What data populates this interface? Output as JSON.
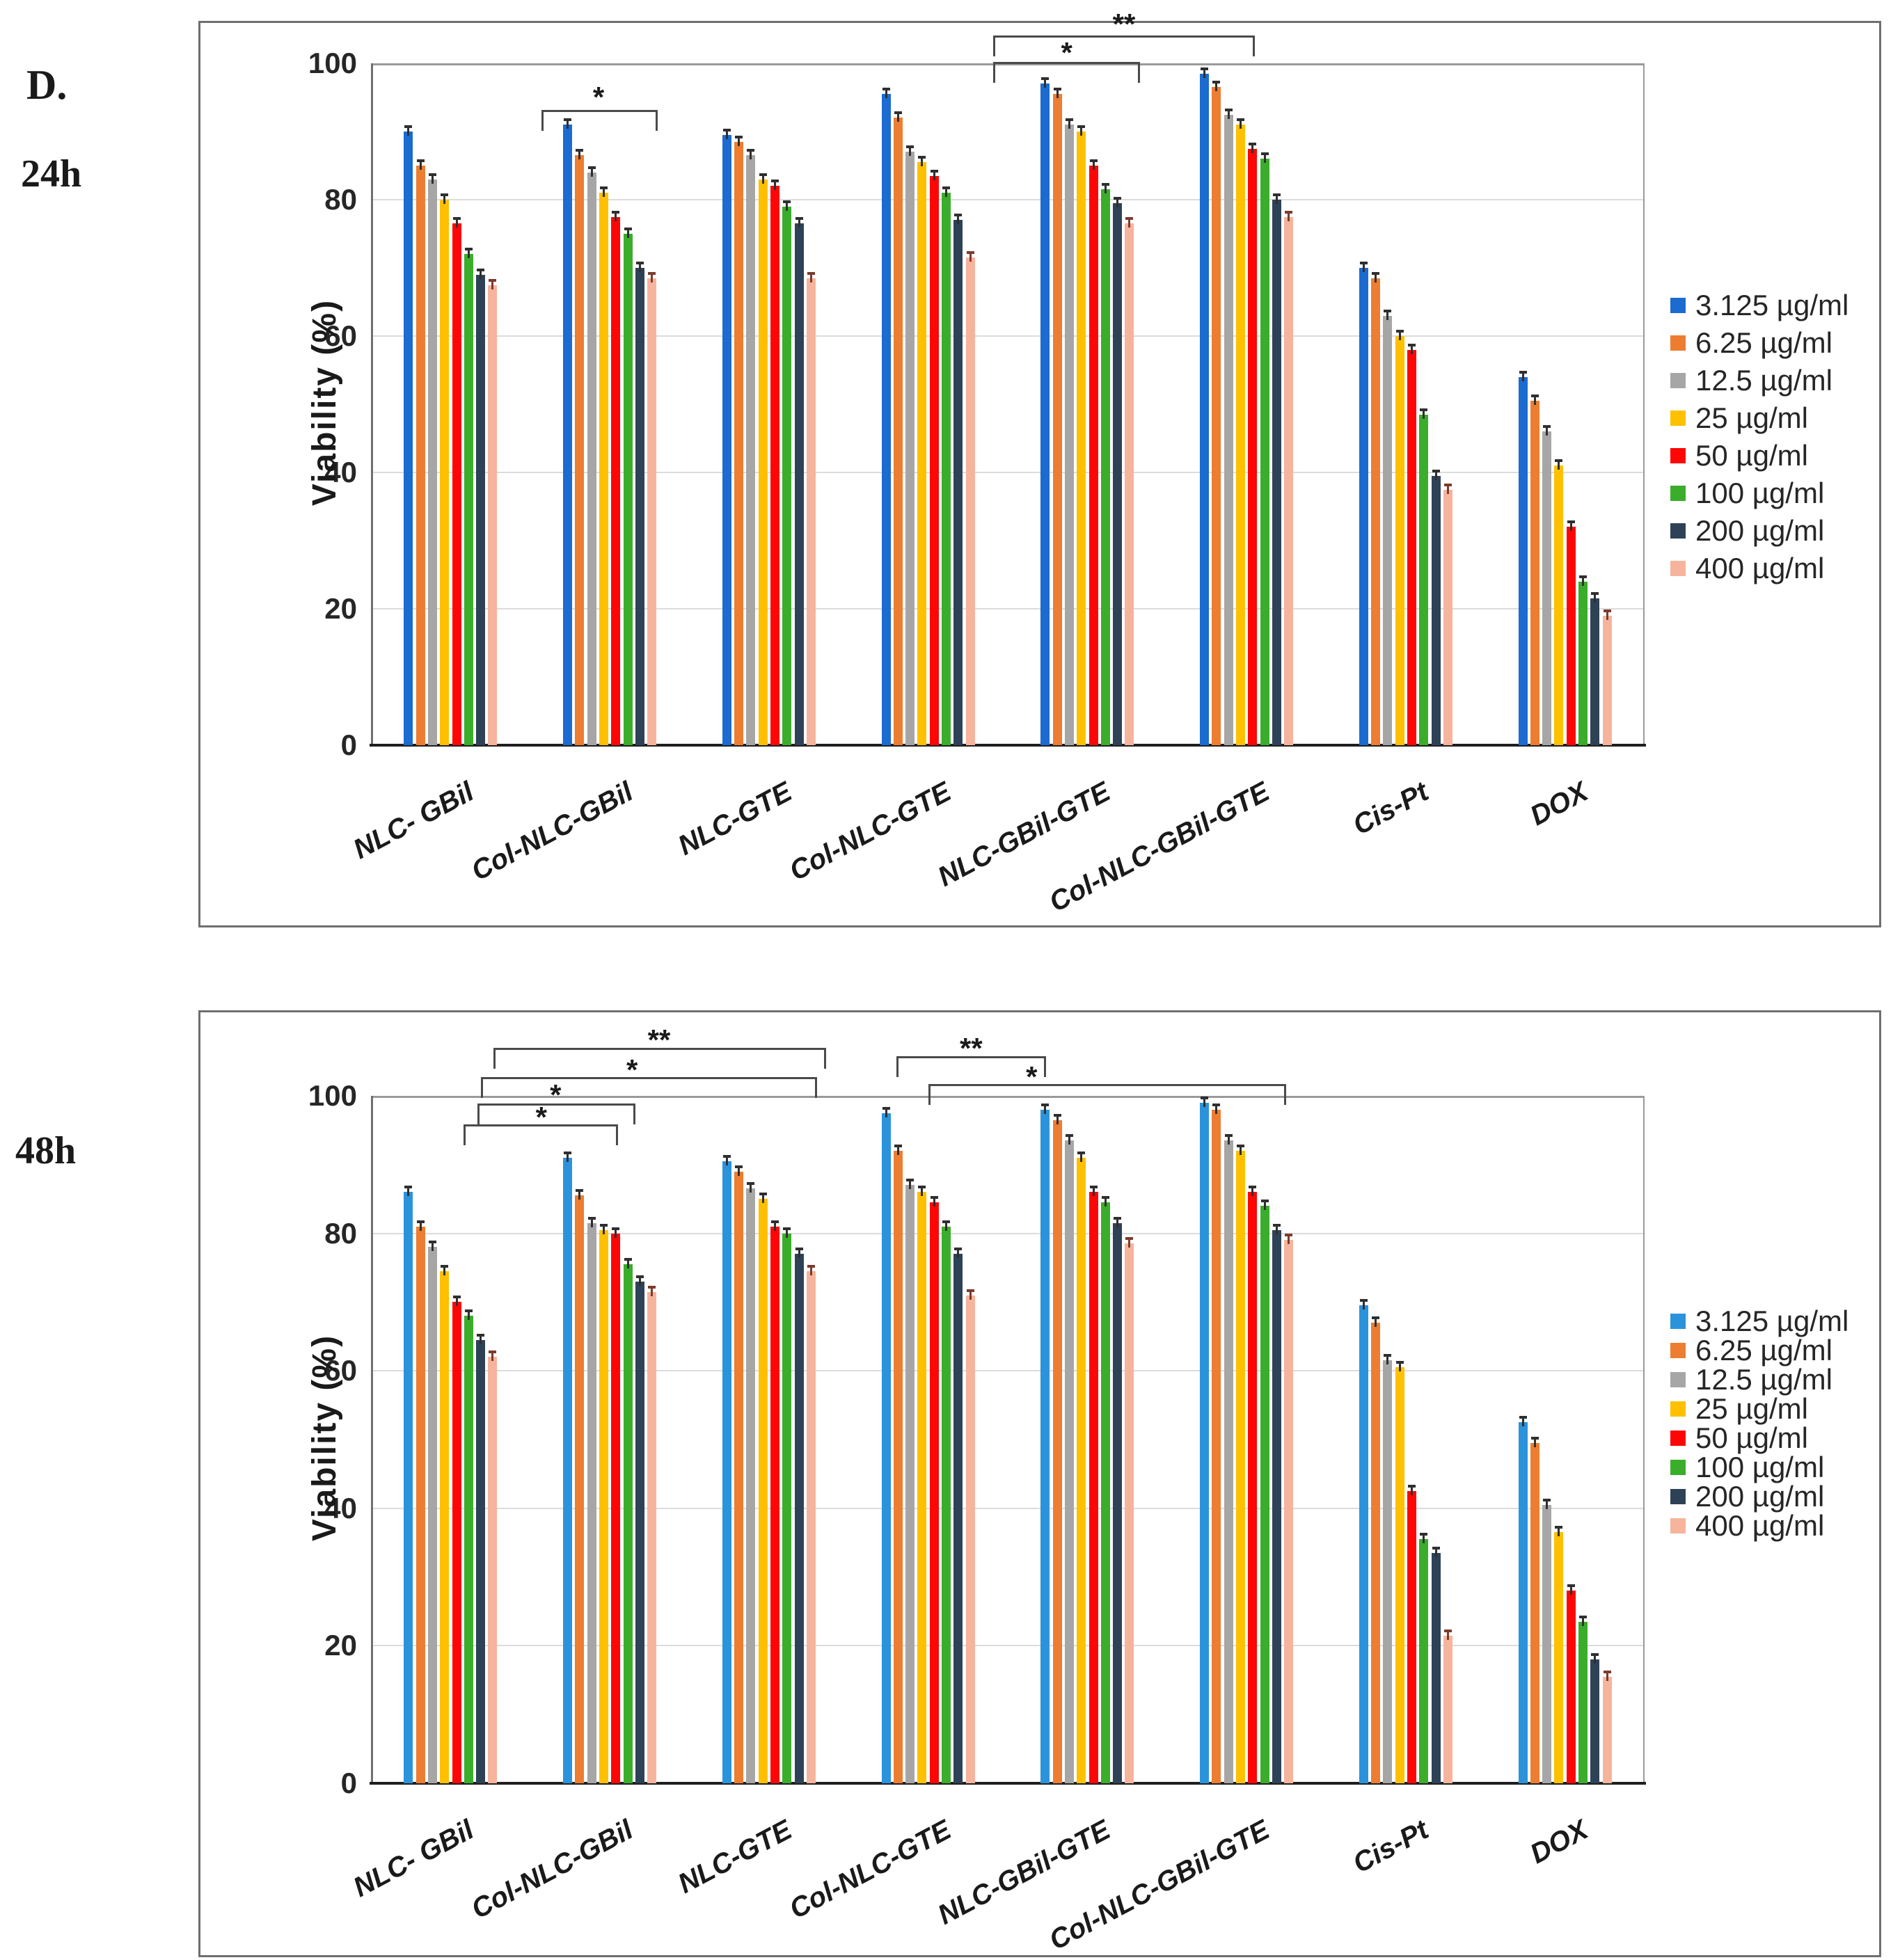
{
  "figure": {
    "panel_label": "D.",
    "background": "#ffffff",
    "border_color": "#6f6f6f"
  },
  "chart_data": [
    {
      "id": "viability-24h",
      "type": "bar",
      "row_label": "24h",
      "ylabel": "Viability  (%)",
      "ylim": [
        0,
        100
      ],
      "yticks": [
        0,
        20,
        40,
        60,
        80,
        100
      ],
      "grid": true,
      "legend_position": "right",
      "error_bar_percent": 0.8,
      "categories": [
        "NLC- GBil",
        "Col-NLC-GBil",
        "NLC-GTE",
        "Col-NLC-GTE",
        "NLC-GBil-GTE",
        "Col-NLC-GBil-GTE",
        "Cis-Pt",
        "DOX"
      ],
      "series": [
        {
          "name": "3.125 µg/ml",
          "color": "#1b6bd0",
          "cap": "#2f2f2f",
          "values": [
            90,
            91,
            89.5,
            95.5,
            97,
            98.5,
            70,
            54
          ]
        },
        {
          "name": "6.25 µg/ml",
          "color": "#ed7d31",
          "cap": "#2f2f2f",
          "values": [
            85,
            86.5,
            88.5,
            92,
            95.5,
            96.5,
            68.5,
            50.5
          ]
        },
        {
          "name": "12.5 µg/ml",
          "color": "#a6a6a6",
          "cap": "#2f2f2f",
          "values": [
            83,
            84,
            86.5,
            87,
            91,
            92.5,
            63,
            46
          ]
        },
        {
          "name": "25 µg/ml",
          "color": "#ffc000",
          "cap": "#2f2f2f",
          "values": [
            80,
            81,
            83,
            85.5,
            90,
            91,
            60,
            41
          ]
        },
        {
          "name": "50 µg/ml",
          "color": "#fe0606",
          "cap": "#2f2f2f",
          "values": [
            76.5,
            77.5,
            82,
            83.5,
            85,
            87.5,
            58,
            32
          ]
        },
        {
          "name": "100 µg/ml",
          "color": "#3aad2b",
          "cap": "#2f2f2f",
          "values": [
            72,
            75,
            79,
            81,
            81.5,
            86,
            48.5,
            24
          ]
        },
        {
          "name": "200 µg/ml",
          "color": "#2e4257",
          "cap": "#2f2f2f",
          "values": [
            69,
            70,
            76.5,
            77,
            79.5,
            80,
            39.5,
            21.5
          ]
        },
        {
          "name": "400 µg/ml",
          "color": "#f6b49d",
          "cap": "#7c3b2d",
          "values": [
            67.5,
            68.5,
            68.5,
            71.5,
            76.5,
            77.5,
            37.5,
            19
          ]
        }
      ],
      "significance": [
        {
          "from": 1.07,
          "to": 1.8,
          "y": 93.2,
          "label": "*",
          "label_at": 1.43,
          "label_y": 97.5
        },
        {
          "from": 3.91,
          "to": 5.55,
          "y": 104.1,
          "label": "**",
          "label_at": 4.73,
          "label_y": 108.2
        },
        {
          "from": 3.91,
          "to": 4.83,
          "y": 100.2,
          "label": "*",
          "label_at": 4.37,
          "label_y": 104.0
        }
      ]
    },
    {
      "id": "viability-48h",
      "type": "bar",
      "row_label": "48h",
      "ylabel": "Viability  (%)",
      "ylim": [
        0,
        100
      ],
      "yticks": [
        0,
        20,
        40,
        60,
        80,
        100
      ],
      "grid": true,
      "legend_position": "right",
      "error_bar_percent": 0.8,
      "categories": [
        "NLC- GBil",
        "Col-NLC-GBil",
        "NLC-GTE",
        "Col-NLC-GTE",
        "NLC-GBil-GTE",
        "Col-NLC-GBil-GTE",
        "Cis-Pt",
        "DOX"
      ],
      "series": [
        {
          "name": "3.125 µg/ml",
          "color": "#2b93db",
          "cap": "#2f2f2f",
          "values": [
            86,
            91,
            90.5,
            97.5,
            98,
            99,
            69.5,
            52.5
          ]
        },
        {
          "name": "6.25 µg/ml",
          "color": "#ed7d31",
          "cap": "#2f2f2f",
          "values": [
            81,
            85.5,
            89,
            92,
            96.5,
            98,
            67,
            49.5
          ]
        },
        {
          "name": "12.5 µg/ml",
          "color": "#a6a6a6",
          "cap": "#2f2f2f",
          "values": [
            78,
            81.5,
            86.5,
            87,
            93.5,
            93.5,
            61.5,
            40.5
          ]
        },
        {
          "name": "25 µg/ml",
          "color": "#ffc000",
          "cap": "#2f2f2f",
          "values": [
            74.5,
            80.5,
            85,
            86,
            91,
            92,
            60.5,
            36.5
          ]
        },
        {
          "name": "50 µg/ml",
          "color": "#fe0606",
          "cap": "#2f2f2f",
          "values": [
            70,
            80,
            81,
            84.5,
            86,
            86,
            42.5,
            28
          ]
        },
        {
          "name": "100 µg/ml",
          "color": "#3aad2b",
          "cap": "#2f2f2f",
          "values": [
            68,
            75.5,
            80,
            81,
            84.5,
            84,
            35.5,
            23.5
          ]
        },
        {
          "name": "200 µg/ml",
          "color": "#2e4257",
          "cap": "#2f2f2f",
          "values": [
            64.5,
            73,
            77,
            77,
            81.5,
            80.5,
            33.5,
            18
          ]
        },
        {
          "name": "400 µg/ml",
          "color": "#f6b49d",
          "cap": "#7c3b2d",
          "values": [
            62,
            71.5,
            74.5,
            71,
            78.5,
            79,
            21.5,
            15.5
          ]
        }
      ],
      "significance": [
        {
          "from": 0.77,
          "to": 2.86,
          "y": 107.0,
          "label": "**",
          "label_at": 1.81,
          "label_y": 110.5
        },
        {
          "from": 0.69,
          "to": 2.8,
          "y": 102.7,
          "label": "*",
          "label_at": 1.64,
          "label_y": 106.2
        },
        {
          "from": 0.67,
          "to": 1.66,
          "y": 98.9,
          "label": "*",
          "label_at": 1.16,
          "label_y": 102.5
        },
        {
          "from": 0.58,
          "to": 1.55,
          "y": 95.8,
          "label": "*",
          "label_at": 1.07,
          "label_y": 99.3
        },
        {
          "from": 3.3,
          "to": 4.24,
          "y": 105.8,
          "label": "**",
          "label_at": 3.77,
          "label_y": 109.3
        },
        {
          "from": 3.5,
          "to": 5.75,
          "y": 101.7,
          "label": "*",
          "label_at": 4.15,
          "label_y": 105.2
        }
      ]
    }
  ],
  "layout_note": "two stacked bar charts, legend right, error bars on each bar, significance brackets above bars"
}
